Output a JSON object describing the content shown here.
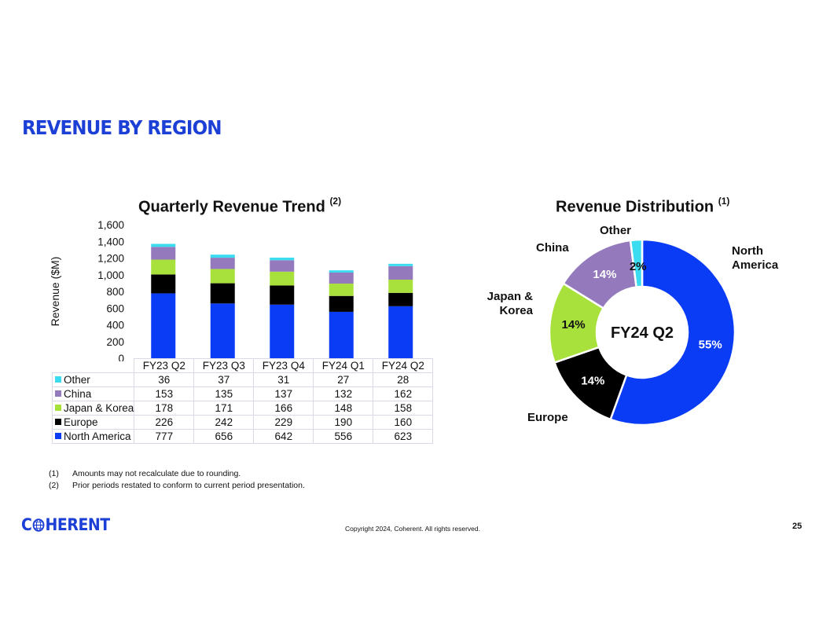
{
  "page": {
    "title": "REVENUE BY REGION",
    "logo_text_left": "C",
    "logo_text_right": "HERENT",
    "copyright": "Copyright 2024, Coherent. All rights reserved.",
    "page_number": "25",
    "footnotes": [
      {
        "num": "(1)",
        "text": "Amounts may not recalculate due to rounding."
      },
      {
        "num": "(2)",
        "text": "Prior periods restated to conform to current period presentation."
      }
    ]
  },
  "colors": {
    "north_america": "#0a3bf5",
    "europe": "#000000",
    "japan_korea": "#a8e03c",
    "china": "#9479bd",
    "other": "#3cdcf0",
    "brand": "#1c3fd6"
  },
  "chart_data": [
    {
      "type": "bar",
      "stacked": true,
      "title": "Quarterly Revenue Trend",
      "title_note": "(2)",
      "ylabel": "Revenue ($M)",
      "ylim": [
        0,
        1600
      ],
      "yticks": [
        0,
        200,
        400,
        600,
        800,
        1000,
        1200,
        1400,
        1600
      ],
      "ytick_labels": [
        "0",
        "200",
        "400",
        "600",
        "800",
        "1,000",
        "1,200",
        "1,400",
        "1,600"
      ],
      "categories": [
        "FY23 Q2",
        "FY23 Q3",
        "FY23 Q4",
        "FY24 Q1",
        "FY24 Q2"
      ],
      "series": [
        {
          "name": "Other",
          "key": "other",
          "values": [
            36,
            37,
            31,
            27,
            28
          ]
        },
        {
          "name": "China",
          "key": "china",
          "values": [
            153,
            135,
            137,
            132,
            162
          ]
        },
        {
          "name": "Japan & Korea",
          "key": "japan_korea",
          "values": [
            178,
            171,
            166,
            148,
            158
          ]
        },
        {
          "name": "Europe",
          "key": "europe",
          "values": [
            226,
            242,
            229,
            190,
            160
          ]
        },
        {
          "name": "North America",
          "key": "north_america",
          "values": [
            777,
            656,
            642,
            556,
            623
          ]
        }
      ]
    },
    {
      "type": "pie",
      "donut": true,
      "title": "Revenue Distribution",
      "title_note": "(1)",
      "center_label": "FY24 Q2",
      "slices": [
        {
          "name": "North America",
          "key": "north_america",
          "value": 55,
          "label": "55%",
          "label_lines": [
            "North",
            "America"
          ]
        },
        {
          "name": "Europe",
          "key": "europe",
          "value": 14,
          "label": "14%",
          "label_lines": [
            "Europe"
          ]
        },
        {
          "name": "Japan & Korea",
          "key": "japan_korea",
          "value": 14,
          "label": "14%",
          "label_lines": [
            "Japan &",
            "Korea"
          ]
        },
        {
          "name": "China",
          "key": "china",
          "value": 14,
          "label": "14%",
          "label_lines": [
            "China"
          ]
        },
        {
          "name": "Other",
          "key": "other",
          "value": 2,
          "label": "2%",
          "label_lines": [
            "Other"
          ]
        }
      ]
    }
  ]
}
